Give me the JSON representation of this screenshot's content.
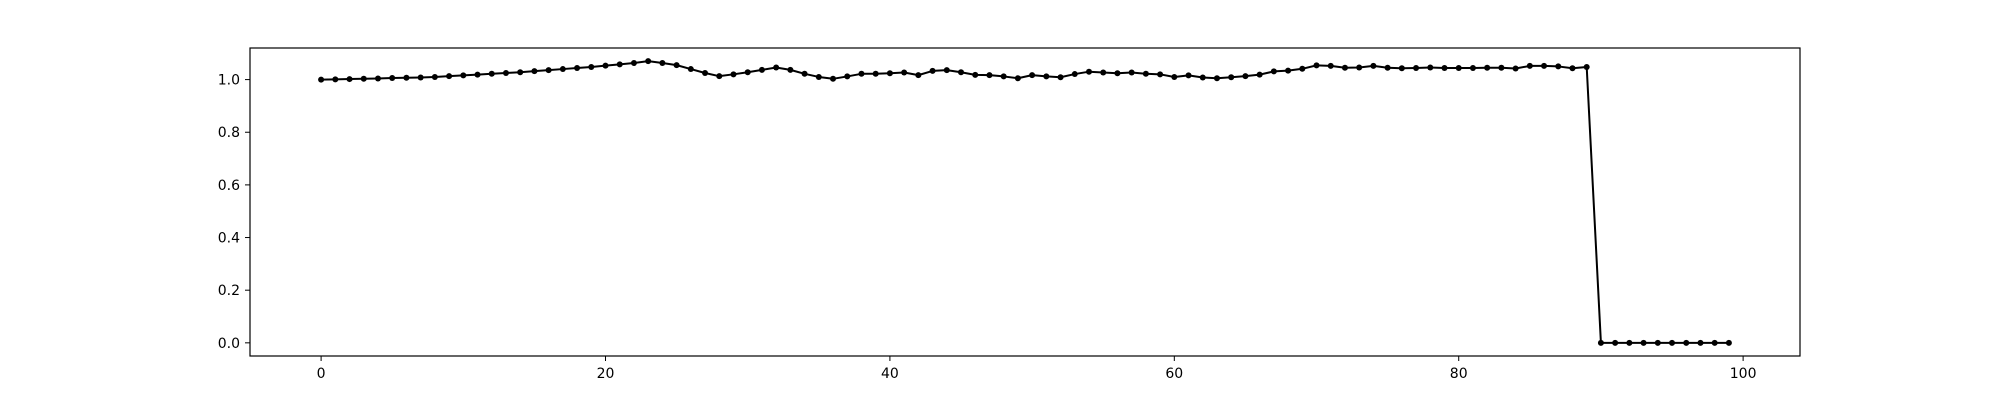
{
  "chart_data": {
    "type": "line",
    "title": "",
    "xlabel": "",
    "ylabel": "",
    "xlim": [
      -5,
      104
    ],
    "ylim": [
      -0.05,
      1.12
    ],
    "xticks": [
      0,
      20,
      40,
      60,
      80,
      100
    ],
    "xtick_labels": [
      "0",
      "20",
      "40",
      "60",
      "80",
      "100"
    ],
    "yticks": [
      0.0,
      0.2,
      0.4,
      0.6,
      0.8,
      1.0
    ],
    "ytick_labels": [
      "0.0",
      "0.2",
      "0.4",
      "0.6",
      "0.8",
      "1.0"
    ],
    "grid": false,
    "legend": false,
    "series": [
      {
        "color": "#000000",
        "marker": "dot",
        "x": [
          0,
          1,
          2,
          3,
          4,
          5,
          6,
          7,
          8,
          9,
          10,
          11,
          12,
          13,
          14,
          15,
          16,
          17,
          18,
          19,
          20,
          21,
          22,
          23,
          24,
          25,
          26,
          27,
          28,
          29,
          30,
          31,
          32,
          33,
          34,
          35,
          36,
          37,
          38,
          39,
          40,
          41,
          42,
          43,
          44,
          45,
          46,
          47,
          48,
          49,
          50,
          51,
          52,
          53,
          54,
          55,
          56,
          57,
          58,
          59,
          60,
          61,
          62,
          63,
          64,
          65,
          66,
          67,
          68,
          69,
          70,
          71,
          72,
          73,
          74,
          75,
          76,
          77,
          78,
          79,
          80,
          81,
          82,
          83,
          84,
          85,
          86,
          87,
          88,
          89,
          90,
          91,
          92,
          93,
          94,
          95,
          96,
          97,
          98,
          99
        ],
        "values": [
          1.0,
          1.001,
          1.002,
          1.003,
          1.004,
          1.006,
          1.007,
          1.008,
          1.01,
          1.013,
          1.016,
          1.019,
          1.022,
          1.025,
          1.028,
          1.032,
          1.036,
          1.04,
          1.044,
          1.048,
          1.053,
          1.058,
          1.063,
          1.07,
          1.063,
          1.055,
          1.04,
          1.025,
          1.013,
          1.02,
          1.028,
          1.037,
          1.046,
          1.037,
          1.022,
          1.01,
          1.003,
          1.012,
          1.022,
          1.022,
          1.024,
          1.027,
          1.017,
          1.033,
          1.036,
          1.028,
          1.018,
          1.017,
          1.012,
          1.005,
          1.017,
          1.012,
          1.009,
          1.021,
          1.03,
          1.027,
          1.024,
          1.027,
          1.022,
          1.02,
          1.01,
          1.016,
          1.008,
          1.005,
          1.009,
          1.013,
          1.019,
          1.031,
          1.034,
          1.041,
          1.054,
          1.052,
          1.045,
          1.046,
          1.052,
          1.045,
          1.043,
          1.044,
          1.046,
          1.044,
          1.044,
          1.044,
          1.045,
          1.045,
          1.042,
          1.052,
          1.052,
          1.05,
          1.043,
          1.048,
          0.0,
          0.0,
          0.0,
          0.0,
          0.0,
          0.0,
          0.0,
          0.0,
          0.0,
          0.0
        ]
      }
    ]
  }
}
